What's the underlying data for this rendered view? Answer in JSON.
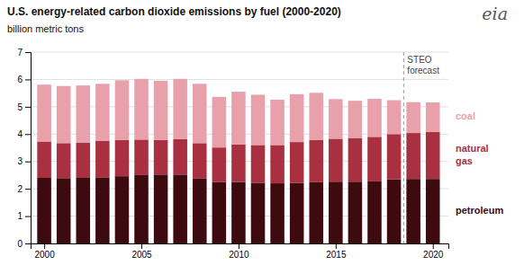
{
  "chart_data": {
    "type": "bar",
    "stacked": true,
    "title": "U.S. energy-related carbon dioxide emissions by fuel (2000-2020)",
    "ylabel": "billion metric tons",
    "x": [
      2000,
      2001,
      2002,
      2003,
      2004,
      2005,
      2006,
      2007,
      2008,
      2009,
      2010,
      2011,
      2012,
      2013,
      2014,
      2015,
      2016,
      2017,
      2018,
      2019,
      2020
    ],
    "series": [
      {
        "name": "petroleum",
        "color": "#3d0a10",
        "values": [
          2.4,
          2.39,
          2.4,
          2.42,
          2.46,
          2.5,
          2.52,
          2.52,
          2.37,
          2.24,
          2.25,
          2.22,
          2.2,
          2.21,
          2.24,
          2.26,
          2.26,
          2.27,
          2.35,
          2.36,
          2.36
        ]
      },
      {
        "name": "natural\ngas",
        "color": "#a83040",
        "values": [
          1.33,
          1.28,
          1.28,
          1.34,
          1.33,
          1.3,
          1.27,
          1.3,
          1.3,
          1.27,
          1.37,
          1.38,
          1.4,
          1.5,
          1.55,
          1.57,
          1.6,
          1.63,
          1.65,
          1.68,
          1.72
        ]
      },
      {
        "name": "coal",
        "color": "#e8a0aa",
        "values": [
          2.08,
          2.09,
          2.1,
          2.08,
          2.18,
          2.22,
          2.16,
          2.2,
          2.17,
          1.85,
          1.93,
          1.84,
          1.66,
          1.75,
          1.72,
          1.45,
          1.36,
          1.39,
          1.24,
          1.13,
          1.08
        ]
      }
    ],
    "xlim": [
      1999.3,
      2020.8
    ],
    "xticks": [
      2000,
      2005,
      2010,
      2015,
      2020
    ],
    "ylim": [
      0,
      7
    ],
    "yticks": [
      0,
      1,
      2,
      3,
      4,
      5,
      6,
      7
    ],
    "grid": true,
    "legend": "right",
    "annotations": [
      {
        "text": "STEO\nforecast",
        "x": 2018.5
      }
    ],
    "logo": "eia"
  }
}
